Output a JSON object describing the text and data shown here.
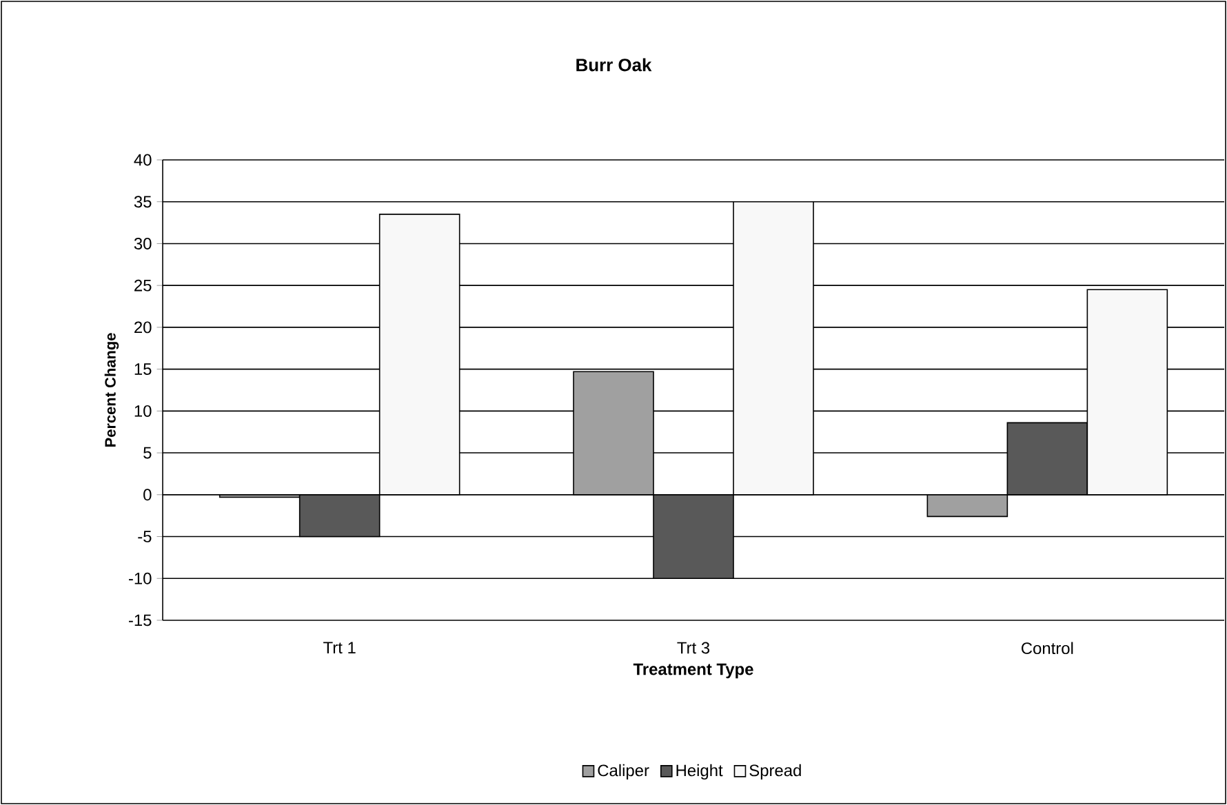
{
  "chart_data": {
    "type": "bar",
    "title": "Burr Oak",
    "xlabel": "Treatment Type",
    "ylabel": "Percent Change",
    "categories": [
      "Trt 1",
      "Trt 3",
      "Control"
    ],
    "series": [
      {
        "name": "Caliper",
        "color": "#a0a0a0",
        "values": [
          -0.3,
          14.7,
          -2.6
        ]
      },
      {
        "name": "Height",
        "color": "#595959",
        "values": [
          -5,
          -10,
          8.6
        ]
      },
      {
        "name": "Spread",
        "color": "#f8f8f8",
        "values": [
          33.5,
          35,
          24.5
        ]
      }
    ],
    "ylim": [
      -15,
      40
    ],
    "yticks": [
      -15,
      -10,
      -5,
      0,
      5,
      10,
      15,
      20,
      25,
      30,
      35,
      40
    ],
    "grid": "y",
    "legend": "bottom"
  }
}
